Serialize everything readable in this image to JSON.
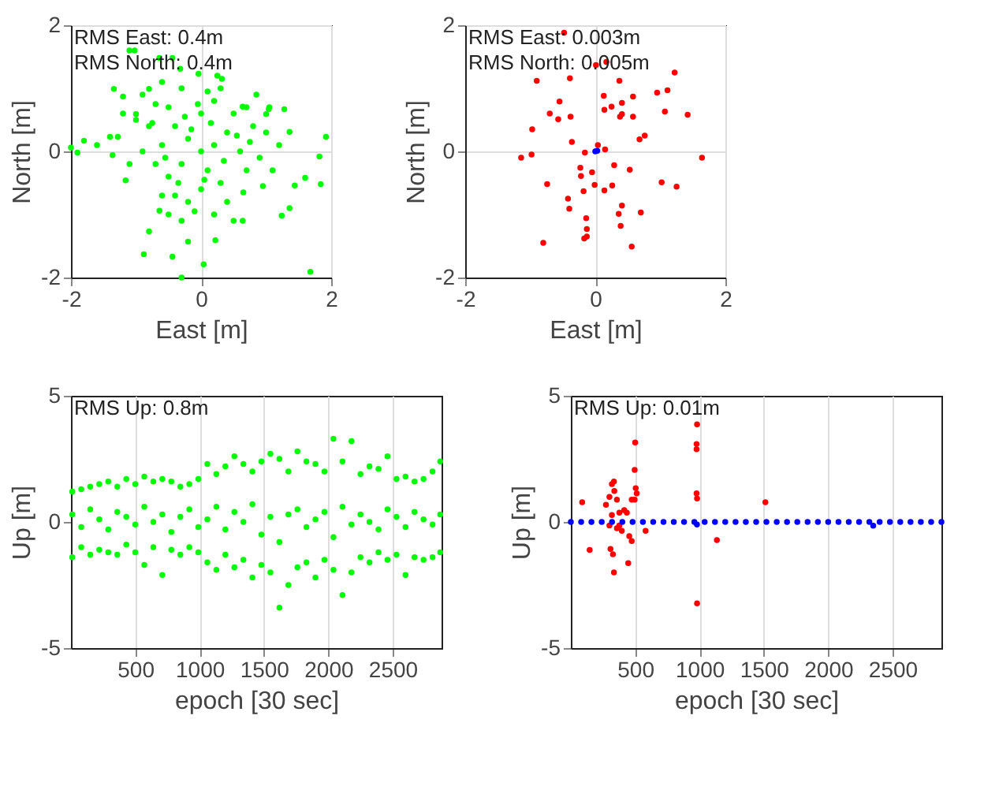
{
  "chart_data": [
    {
      "type": "scatter",
      "xlabel": "East [m]",
      "ylabel": "North [m]",
      "xlim": [
        -2,
        2
      ],
      "ylim": [
        -2,
        2
      ],
      "xticks": [
        -2,
        0,
        2
      ],
      "yticks": [
        -2,
        0,
        2
      ],
      "grid": true,
      "annotations": [
        "RMS East:  0.4m",
        "RMS North: 0.4m"
      ],
      "series": [
        {
          "color": "#00ff00",
          "x": [
            -2.0,
            -1.9,
            -1.8,
            -1.6,
            -1.4,
            -1.28,
            -1.36,
            -1.16,
            -0.88,
            -0.8,
            -0.64,
            -0.44,
            -0.3,
            -0.2,
            0.04,
            0.22,
            0.64,
            1.24,
            1.36,
            1.44,
            1.6,
            1.84,
            1.82,
            1.92,
            1.68,
            1.36,
            1.28,
            1.04,
            1.0,
            0.64,
            0.32,
            -0.04,
            -0.32,
            -0.64,
            -0.44,
            -1.1,
            -1.02,
            -1.34,
            -1.2,
            -1.0,
            -0.8,
            0,
            0.2,
            -0.2,
            0.1,
            -0.3,
            0.4,
            -0.4,
            0.3,
            -0.5,
            0.6,
            -0.6,
            0,
            0,
            0.5,
            -0.5,
            0.7,
            -0.7,
            0.2,
            -0.2,
            0.8,
            -0.8,
            0.4,
            -0.4,
            0.9,
            -0.9,
            0.1,
            -0.1,
            0.7,
            -0.7,
            0.65,
            -0.6,
            1.0,
            -1.0,
            0.3,
            -0.3,
            0.2,
            -0.5,
            1.1,
            -1.1,
            0.85,
            -0.9,
            1.2,
            -1.2,
            0.5,
            -0.3,
            0.15,
            -0.15,
            0.35,
            -0.35,
            0.55,
            -0.55,
            0.05,
            -0.05,
            0.75,
            -0.75,
            0.95,
            -0.25,
            0.25,
            -0.6,
            1.05
          ],
          "values": [
            0.06,
            -0.02,
            0.17,
            0.1,
            0.23,
            0.23,
            -0.06,
            -0.46,
            -1.63,
            -1.27,
            -0.94,
            -1.67,
            -2.0,
            -1.43,
            -1.79,
            -1.41,
            -1.1,
            -1.02,
            -0.9,
            -0.54,
            -0.42,
            -0.52,
            -0.08,
            0.23,
            -1.91,
            0.31,
            0.67,
            0.67,
            0.59,
            0.71,
            1.15,
            1.23,
            1.31,
            1.48,
            1.48,
            1.6,
            1.6,
            0.99,
            0.87,
            0.59,
            0.99,
            0,
            0.1,
            0.2,
            -0.3,
            -0.2,
            0.3,
            0.4,
            -0.5,
            -0.4,
            0,
            0.1,
            0.6,
            -0.6,
            0.6,
            0.7,
            -0.3,
            -0.2,
            0.8,
            -0.8,
            0.4,
            0.4,
            -0.8,
            -0.7,
            -0.1,
            0,
            0.95,
            -0.95,
            0.7,
            0.75,
            -0.65,
            -0.7,
            0.3,
            0.5,
            1.0,
            1.0,
            -1.0,
            -1.0,
            -0.3,
            -0.2,
            0.9,
            0.9,
            0.1,
            0.6,
            -1.1,
            -1.1,
            0.45,
            0.35,
            -0.15,
            -0.5,
            0.25,
            -0.1,
            -0.45,
            0.75,
            0.15,
            0.45,
            -0.55,
            0.55,
            1.2,
            1.1,
            0.7
          ]
        }
      ]
    },
    {
      "type": "scatter",
      "xlabel": "East [m]",
      "ylabel": "North [m]",
      "xlim": [
        -2,
        2
      ],
      "ylim": [
        -2,
        2
      ],
      "xticks": [
        -2,
        0,
        2
      ],
      "yticks": [
        -2,
        0,
        2
      ],
      "grid": true,
      "annotations": [
        "RMS East:  0.003m",
        "RMS North: 0.005m"
      ],
      "series": [
        {
          "color": "#ff0000",
          "x": [
            -0.48,
            0.01,
            0.17,
            0.37,
            -0.39,
            -0.9,
            1.22,
            0.95,
            1.11,
            0.13,
            0.41,
            0.25,
            0.14,
            0.58,
            -0.55,
            -0.7,
            -0.57,
            -0.38,
            0.38,
            0.41,
            0.58,
            1.07,
            1.42,
            -0.97,
            -0.36,
            0.76,
            0.68,
            0.04,
            0.15,
            -0.16,
            -0.98,
            -1.14,
            1.64,
            -0.23,
            -0.05,
            0.29,
            0.53,
            -0.22,
            -0.74,
            -0.01,
            0.26,
            0.14,
            -0.18,
            1.02,
            1.25,
            -0.42,
            -0.4,
            0.41,
            0.36,
            0.7,
            -0.14,
            -0.13,
            0.39,
            -0.13,
            -0.17,
            -0.8,
            0.56
          ],
          "values": [
            1.88,
            1.37,
            1.42,
            1.12,
            1.16,
            1.12,
            1.25,
            0.93,
            0.97,
            0.88,
            0.77,
            0.71,
            0.66,
            0.87,
            0.79,
            0.6,
            0.51,
            0.55,
            0.55,
            0.59,
            0.55,
            0.63,
            0.58,
            0.35,
            0.15,
            0.25,
            0.19,
            0.1,
            0.03,
            -0.02,
            -0.05,
            -0.1,
            -0.1,
            -0.26,
            -0.33,
            -0.22,
            -0.29,
            -0.39,
            -0.52,
            -0.53,
            -0.54,
            -0.62,
            -0.63,
            -0.49,
            -0.56,
            -0.75,
            -0.91,
            -0.86,
            -0.99,
            -0.97,
            -1.06,
            -1.23,
            -1.18,
            -1.35,
            -1.38,
            -1.45,
            -1.51
          ]
        },
        {
          "color": "#0000ff",
          "x": [
            0,
            0.03
          ],
          "values": [
            0,
            0.01
          ]
        }
      ]
    },
    {
      "type": "scatter",
      "xlabel": "epoch [30 sec]",
      "ylabel": "Up [m]",
      "xlim": [
        0,
        2880
      ],
      "ylim": [
        -5,
        5
      ],
      "xticks": [
        500,
        1000,
        1500,
        2000,
        2500
      ],
      "yticks": [
        -5,
        0,
        5
      ],
      "grid": "x",
      "annotations": [
        "RMS Up: 0.8m"
      ],
      "series": [
        {
          "color": "#00ff00",
          "x": [
            10,
            80,
            150,
            220,
            290,
            360,
            430,
            500,
            570,
            640,
            710,
            780,
            850,
            920,
            990,
            1060,
            1130,
            1200,
            1270,
            1340,
            1410,
            1480,
            1550,
            1620,
            1690,
            1760,
            1830,
            1900,
            1970,
            2040,
            2110,
            2180,
            2250,
            2320,
            2390,
            2460,
            2530,
            2600,
            2670,
            2740,
            2810,
            2870,
            10,
            80,
            150,
            220,
            290,
            360,
            430,
            500,
            570,
            640,
            710,
            780,
            850,
            920,
            990,
            1060,
            1130,
            1200,
            1270,
            1340,
            1410,
            1480,
            1550,
            1620,
            1690,
            1760,
            1830,
            1900,
            1970,
            2040,
            2110,
            2180,
            2250,
            2320,
            2390,
            2460,
            2530,
            2600,
            2670,
            2740,
            2810,
            2870,
            10,
            80,
            150,
            220,
            290,
            360,
            430,
            500,
            570,
            640,
            710,
            780,
            850,
            920,
            990,
            1060,
            1130,
            1200,
            1270,
            1340,
            1410,
            1480,
            1550,
            1620,
            1690,
            1760,
            1830,
            1900,
            1970,
            2040,
            2110,
            2180,
            2250,
            2320,
            2390,
            2460,
            2530,
            2600,
            2670,
            2740,
            2810,
            2870
          ],
          "values": [
            1.2,
            1.3,
            1.4,
            1.5,
            1.6,
            1.4,
            1.7,
            1.5,
            1.8,
            1.6,
            1.7,
            1.6,
            1.4,
            1.5,
            1.7,
            2.3,
            1.9,
            2.2,
            2.6,
            2.3,
            2.0,
            2.4,
            2.7,
            2.5,
            2.0,
            2.8,
            2.4,
            2.3,
            2.0,
            3.3,
            2.4,
            3.2,
            1.9,
            2.2,
            2.1,
            2.6,
            1.7,
            1.8,
            1.6,
            1.7,
            2.0,
            2.4,
            0.3,
            -0.2,
            0.5,
            0.1,
            -0.3,
            0.4,
            0.2,
            -0.1,
            0.6,
            0.0,
            0.3,
            -0.4,
            0.2,
            0.5,
            -0.2,
            0.1,
            0.6,
            -0.3,
            0.4,
            0.0,
            0.7,
            -0.5,
            0.2,
            -0.8,
            0.3,
            0.5,
            -0.2,
            0.1,
            0.4,
            -0.6,
            0.6,
            -0.1,
            0.3,
            0.0,
            -0.3,
            0.5,
            0.2,
            -0.2,
            0.4,
            0.1,
            -0.1,
            0.3,
            -1.4,
            -1.0,
            -1.3,
            -1.1,
            -1.2,
            -1.3,
            -0.9,
            -1.2,
            -1.7,
            -1.0,
            -2.1,
            -1.1,
            -1.3,
            -1.0,
            -1.2,
            -1.6,
            -1.9,
            -1.3,
            -1.8,
            -1.5,
            -2.2,
            -1.7,
            -2.0,
            -3.4,
            -2.5,
            -1.8,
            -1.6,
            -2.2,
            -1.5,
            -1.9,
            -2.9,
            -2.0,
            -1.4,
            -1.6,
            -1.2,
            -1.5,
            -1.3,
            -2.1,
            -1.4,
            -1.5,
            -1.4,
            -1.2
          ]
        }
      ]
    },
    {
      "type": "scatter",
      "xlabel": "epoch [30 sec]",
      "ylabel": "Up [m]",
      "xlim": [
        0,
        2880
      ],
      "ylim": [
        -5,
        5
      ],
      "xticks": [
        500,
        1000,
        1500,
        2000,
        2500
      ],
      "yticks": [
        -5,
        0,
        5
      ],
      "grid": "x",
      "annotations": [
        "RMS Up: 0.01m"
      ],
      "series": [
        {
          "color": "#ff0000",
          "x": [
            88,
            146,
            500,
            496,
            504,
            512,
            496,
            335,
            319,
            338,
            300,
            358,
            473,
            415,
            377,
            435,
            319,
            300,
            358,
            396,
            454,
            473,
            308,
            327,
            335,
            446,
            581,
            981,
            977,
            977,
            977,
            981,
            981,
            1135,
            1512,
            273,
            377
          ],
          "values": [
            0.78,
            -1.11,
            3.15,
            2.06,
            1.34,
            1.13,
            0.88,
            1.6,
            1.5,
            1.23,
            0.99,
            0.88,
            0.88,
            0.47,
            0.37,
            0.37,
            0.27,
            -0.14,
            -0.25,
            -0.35,
            -0.56,
            -0.76,
            -1.07,
            -1.28,
            -2.0,
            -1.63,
            -0.35,
            3.87,
            3.09,
            2.88,
            1.13,
            0.93,
            -3.23,
            -0.72,
            0.78,
            0.68,
            -0.14
          ]
        },
        {
          "color": "#0000ff",
          "x": [
            0,
            80,
            160,
            240,
            320,
            400,
            480,
            560,
            640,
            720,
            800,
            880,
            960,
            980,
            1040,
            1120,
            1200,
            1280,
            1360,
            1440,
            1520,
            1600,
            1680,
            1760,
            1840,
            1920,
            2000,
            2080,
            2160,
            2240,
            2320,
            2350,
            2400,
            2480,
            2560,
            2640,
            2720,
            2800,
            2880
          ],
          "values": [
            0,
            0,
            0,
            0,
            0,
            0,
            0,
            0,
            0,
            0,
            0,
            0,
            0,
            -0.1,
            0,
            0,
            0,
            0,
            0,
            0,
            0,
            0,
            0,
            0,
            0,
            0,
            0,
            0,
            0,
            0,
            0,
            -0.15,
            0,
            0,
            0,
            0,
            0,
            0,
            0
          ]
        }
      ]
    }
  ]
}
